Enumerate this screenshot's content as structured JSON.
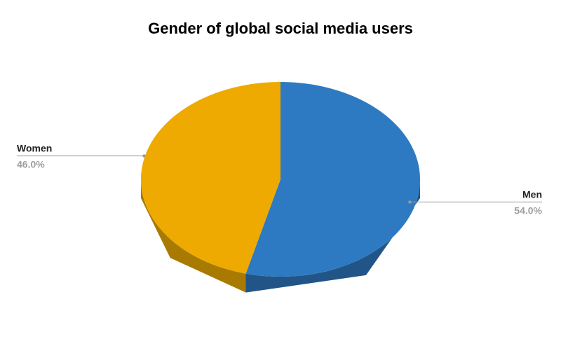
{
  "chart_data": {
    "type": "pie",
    "style": "3d",
    "title": "Gender of global social media users",
    "slices": [
      {
        "label": "Men",
        "value": 54.0,
        "value_label": "54.0%",
        "color": "#2E7AC2",
        "side_color": "#215588"
      },
      {
        "label": "Women",
        "value": 46.0,
        "value_label": "46.0%",
        "color": "#EEAA00",
        "side_color": "#A97A00"
      }
    ],
    "start_angle": "top",
    "direction": "clockwise",
    "legend": "none",
    "label_style": "leader-lines"
  }
}
